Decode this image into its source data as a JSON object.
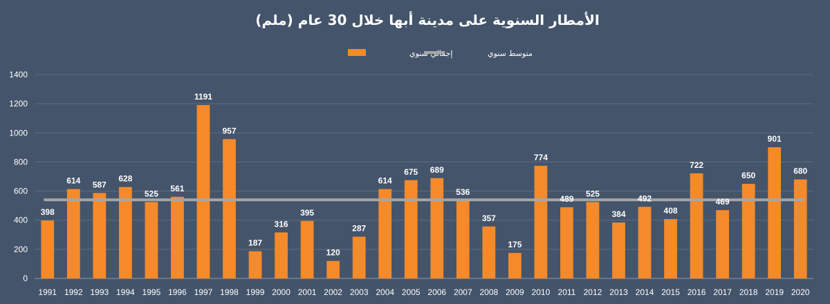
{
  "chart_data": {
    "type": "bar",
    "title": "الأمطار السنوية على مدينة أبها خلال 30 عام (ملم)",
    "xlabel": "",
    "ylabel": "",
    "ylim": [
      0,
      1400
    ],
    "yticks": [
      0,
      200,
      400,
      600,
      800,
      1000,
      1200,
      1400
    ],
    "grid": true,
    "legend_position": "top-center",
    "categories": [
      "1991",
      "1992",
      "1993",
      "1994",
      "1995",
      "1996",
      "1997",
      "1998",
      "1999",
      "2000",
      "2001",
      "2002",
      "2003",
      "2004",
      "2005",
      "2006",
      "2007",
      "2008",
      "2009",
      "2010",
      "2011",
      "2012",
      "2013",
      "2014",
      "2015",
      "2016",
      "2017",
      "2018",
      "2019",
      "2020"
    ],
    "series": [
      {
        "name": "إجمالي سنوي",
        "type": "bar",
        "color": "#f58a2a",
        "values": [
          398,
          614,
          587,
          628,
          525,
          561,
          1191,
          957,
          187,
          316,
          395,
          120,
          287,
          614,
          675,
          689,
          536,
          357,
          175,
          774,
          489,
          525,
          384,
          492,
          408,
          722,
          469,
          650,
          901,
          680
        ]
      },
      {
        "name": "متوسط سنوي",
        "type": "line",
        "color": "#a6a6a6",
        "value": 540
      }
    ]
  }
}
